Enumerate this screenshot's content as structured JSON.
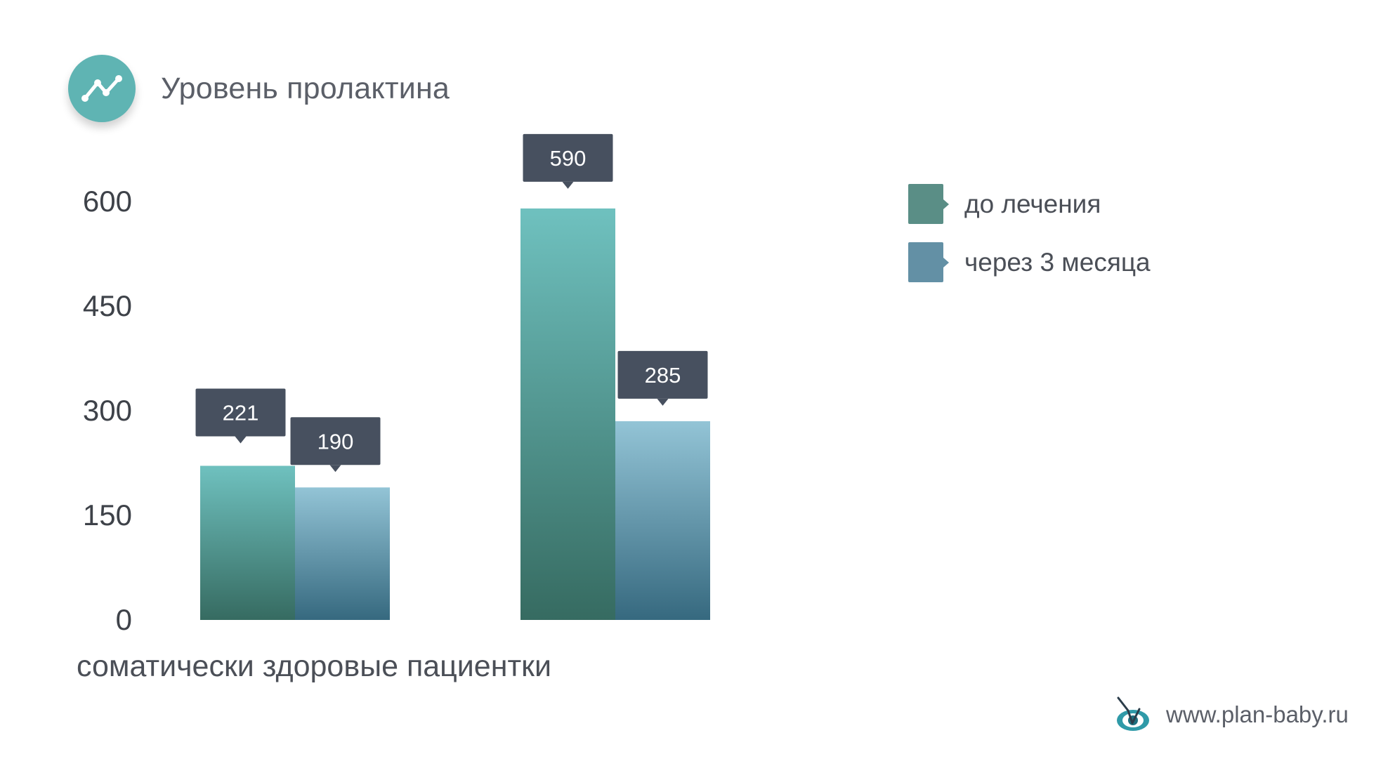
{
  "header": {
    "title": "Уровень пролактина",
    "icon": "line-chart-icon"
  },
  "chart_data": {
    "type": "bar",
    "categories": [
      "",
      ""
    ],
    "series": [
      {
        "name": "до лечения",
        "values": [
          221,
          590
        ],
        "color": "#5a8e86"
      },
      {
        "name": "через 3 месяца",
        "values": [
          190,
          285
        ],
        "color": "#6390a5"
      }
    ],
    "ylim": [
      0,
      600
    ],
    "yticks": [
      0,
      150,
      300,
      450,
      600
    ],
    "xlabel": "соматически здоровые пациентки",
    "ylabel": "",
    "grid": true,
    "legend_position": "right",
    "colors": {
      "series1_top": "#6fc1bf",
      "series1_bottom": "#366b61",
      "series2_top": "#93c4d6",
      "series2_bottom": "#36697f",
      "tooltip": "#47505f"
    }
  },
  "footer": {
    "site": "www.plan-baby.ru",
    "logo_icon": "eye-logo-icon"
  }
}
